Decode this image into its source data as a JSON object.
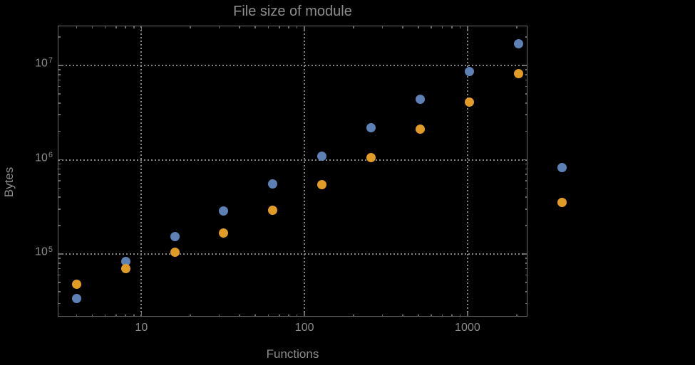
{
  "colors": {
    "background": "#000000",
    "frame": "#6b6b6b",
    "grid": "#858585",
    "text": "#8c8c8c",
    "series_blue": "#5e81b5",
    "series_orange": "#e09c24"
  },
  "chart_data": {
    "type": "scatter",
    "title": "File size of module",
    "xlabel": "Functions",
    "ylabel": "Bytes",
    "xscale": "log",
    "yscale": "log",
    "xlim": [
      3.1,
      2330
    ],
    "ylim": [
      21700,
      26000000
    ],
    "grid": true,
    "x": [
      4,
      8,
      16,
      32,
      64,
      128,
      256,
      512,
      1024,
      2048
    ],
    "series": [
      {
        "name": "series-blue",
        "color": "#5e81b5",
        "values": [
          34000,
          84000,
          152000,
          284000,
          550000,
          1100000,
          2200000,
          4400000,
          8600000,
          17000000
        ]
      },
      {
        "name": "series-orange",
        "color": "#e09c24",
        "values": [
          48000,
          70000,
          105000,
          168000,
          290000,
          540000,
          1050000,
          2100000,
          4100000,
          8200000
        ]
      }
    ],
    "x_ticks": [
      {
        "label": "10",
        "value": 10
      },
      {
        "label": "100",
        "value": 100
      },
      {
        "label": "1000",
        "value": 1000
      }
    ],
    "y_ticks": [
      {
        "base": "10",
        "exp": "5",
        "value": 100000
      },
      {
        "base": "10",
        "exp": "6",
        "value": 1000000
      },
      {
        "base": "10",
        "exp": "7",
        "value": 10000000
      }
    ],
    "legend": {
      "position": "right-of-plot",
      "items": [
        {
          "label": "",
          "color": "#5e81b5",
          "name": "legend-marker-blue"
        },
        {
          "label": "",
          "color": "#e09c24",
          "name": "legend-marker-orange"
        }
      ]
    }
  }
}
